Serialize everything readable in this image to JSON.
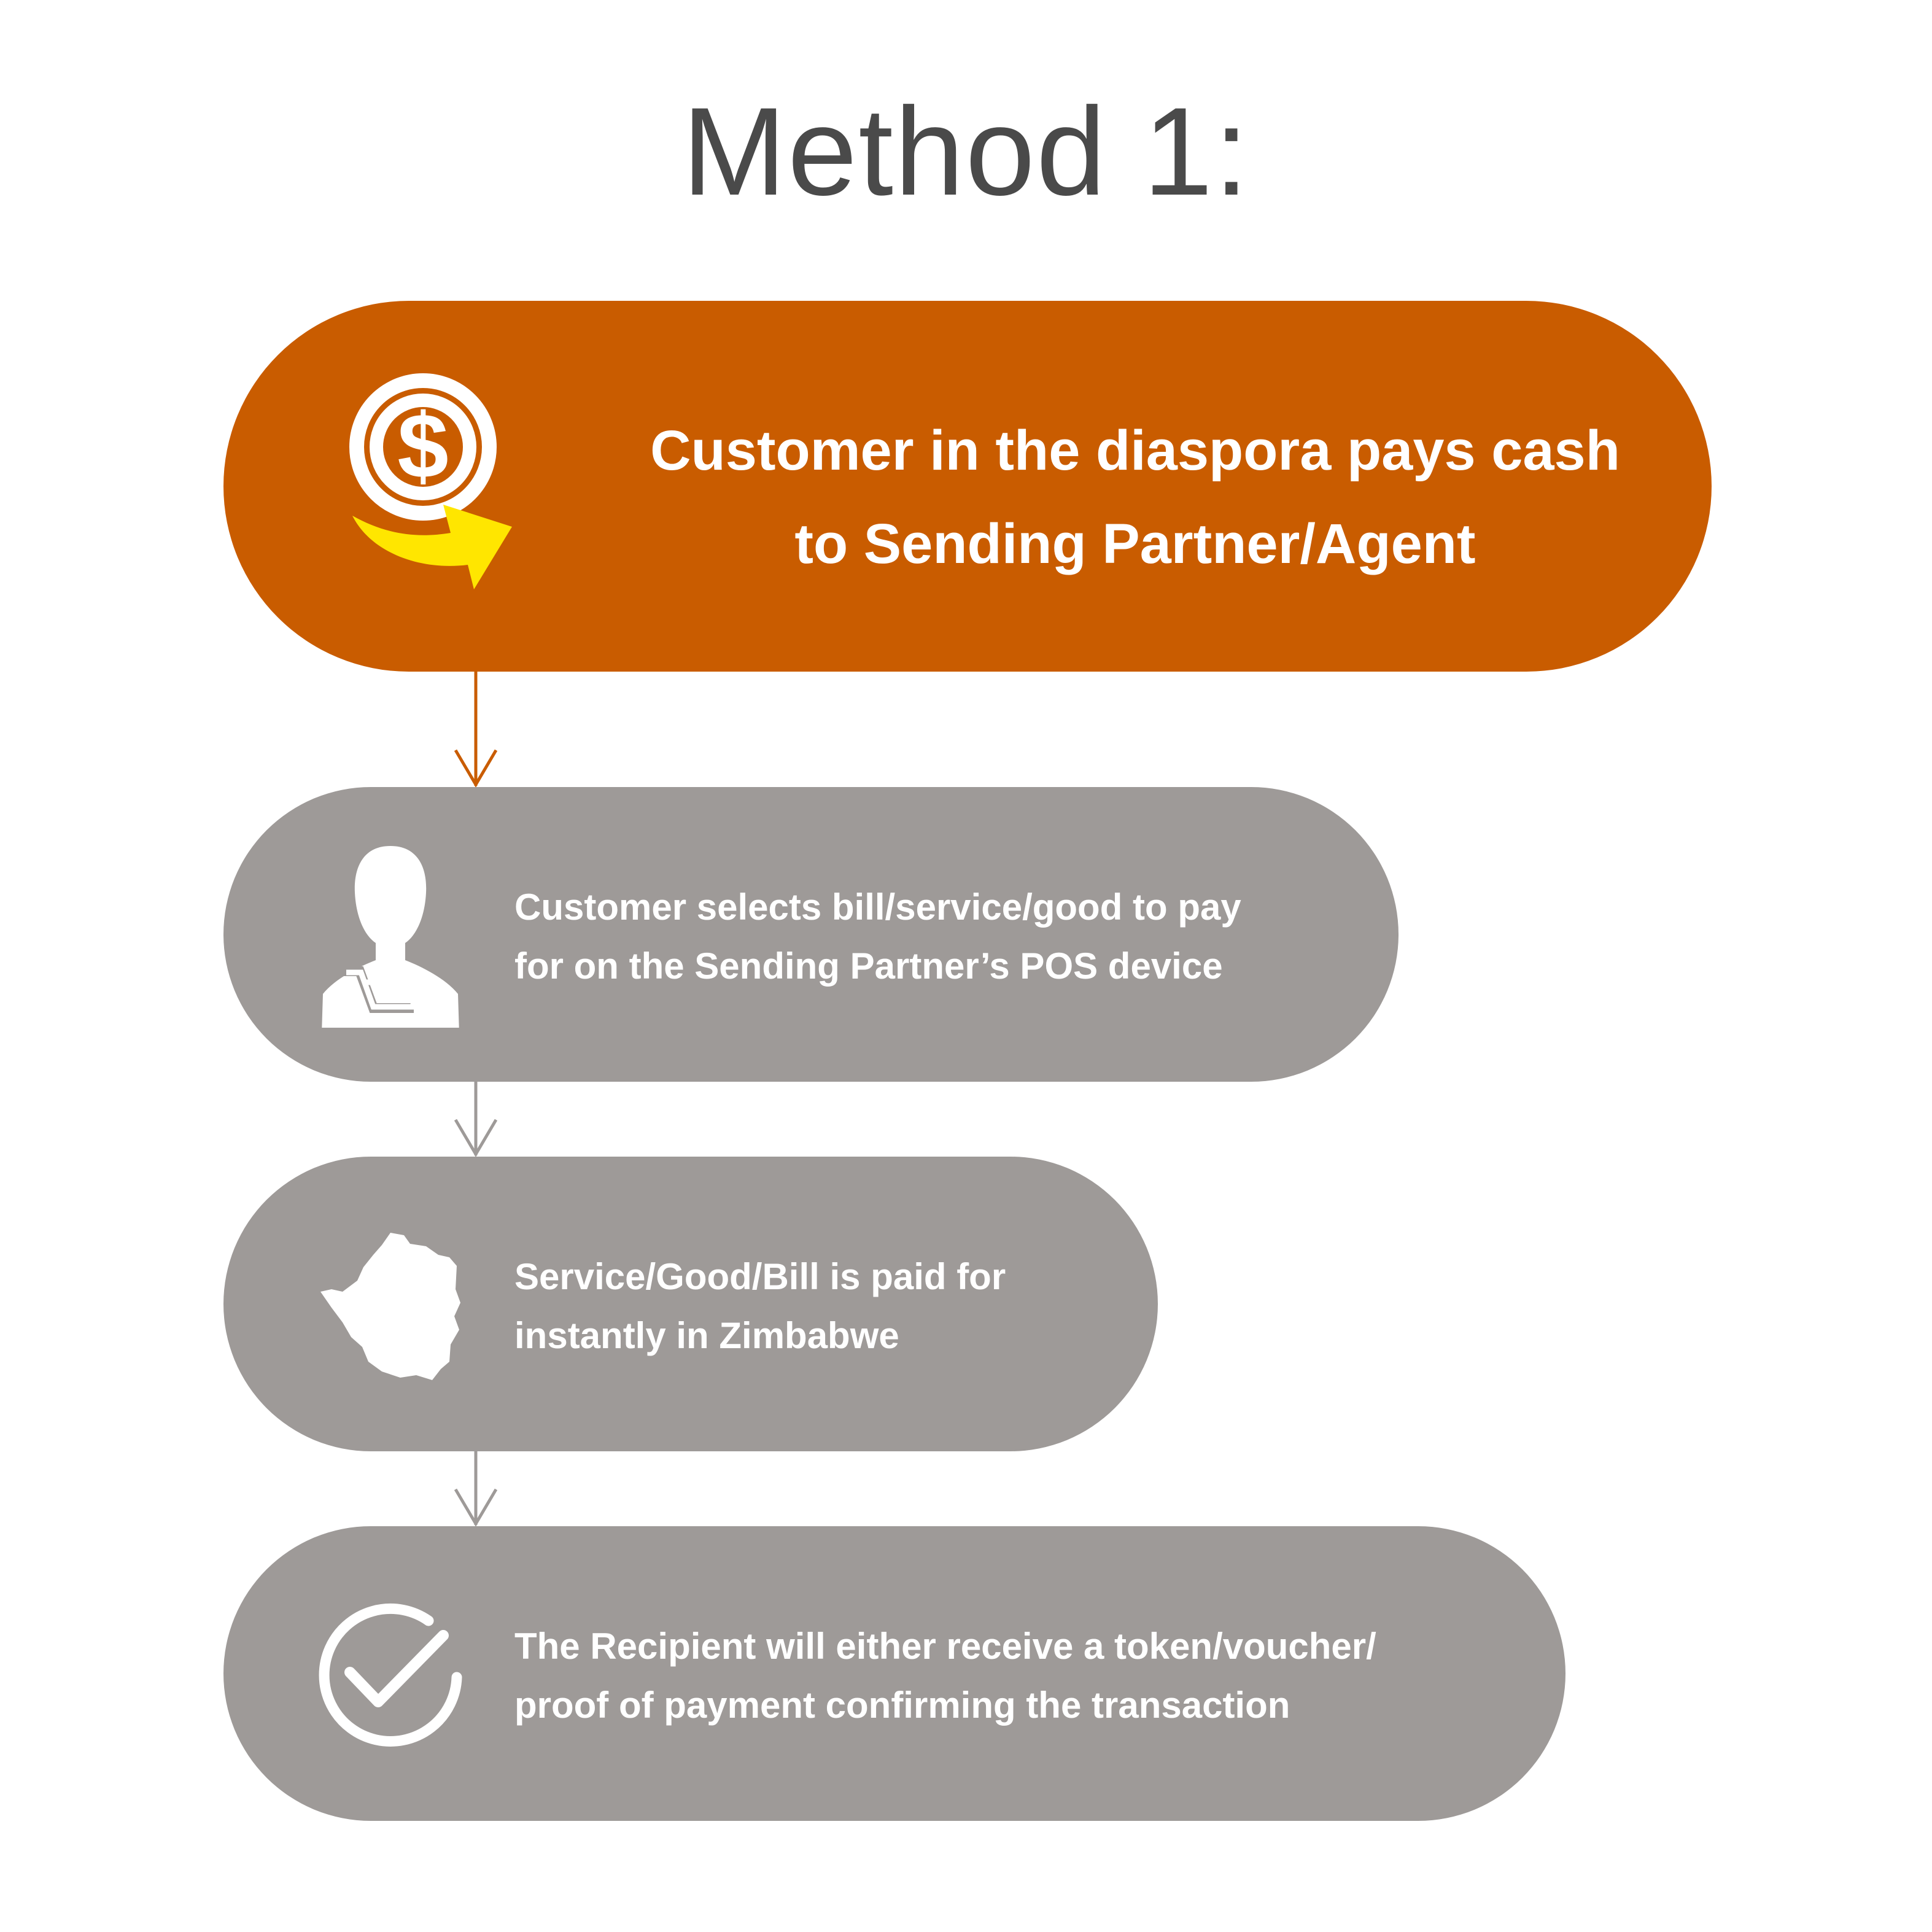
{
  "title": "Method 1:",
  "colors": {
    "primary_step": "#c95c00",
    "secondary_step": "#9e9a98",
    "arrow_accent": "#ffe600",
    "title_text": "#4a4a4a",
    "step_text": "#ffffff",
    "connector_primary": "#c95c00",
    "connector_secondary": "#9e9a98"
  },
  "steps": [
    {
      "icon": "dollar-coin-arrow-icon",
      "text": "Customer in the diaspora pays cash\nto Sending Partner/Agent"
    },
    {
      "icon": "person-cart-icon",
      "text": "Customer selects bill/service/good to pay\nfor on the Sending Partner’s POS device"
    },
    {
      "icon": "zimbabwe-map-icon",
      "text": "Service/Good/Bill is paid for\ninstantly in Zimbabwe"
    },
    {
      "icon": "check-circle-icon",
      "text": "The Recipient will either receive a token/voucher/\nproof of payment confirming the transaction"
    }
  ]
}
